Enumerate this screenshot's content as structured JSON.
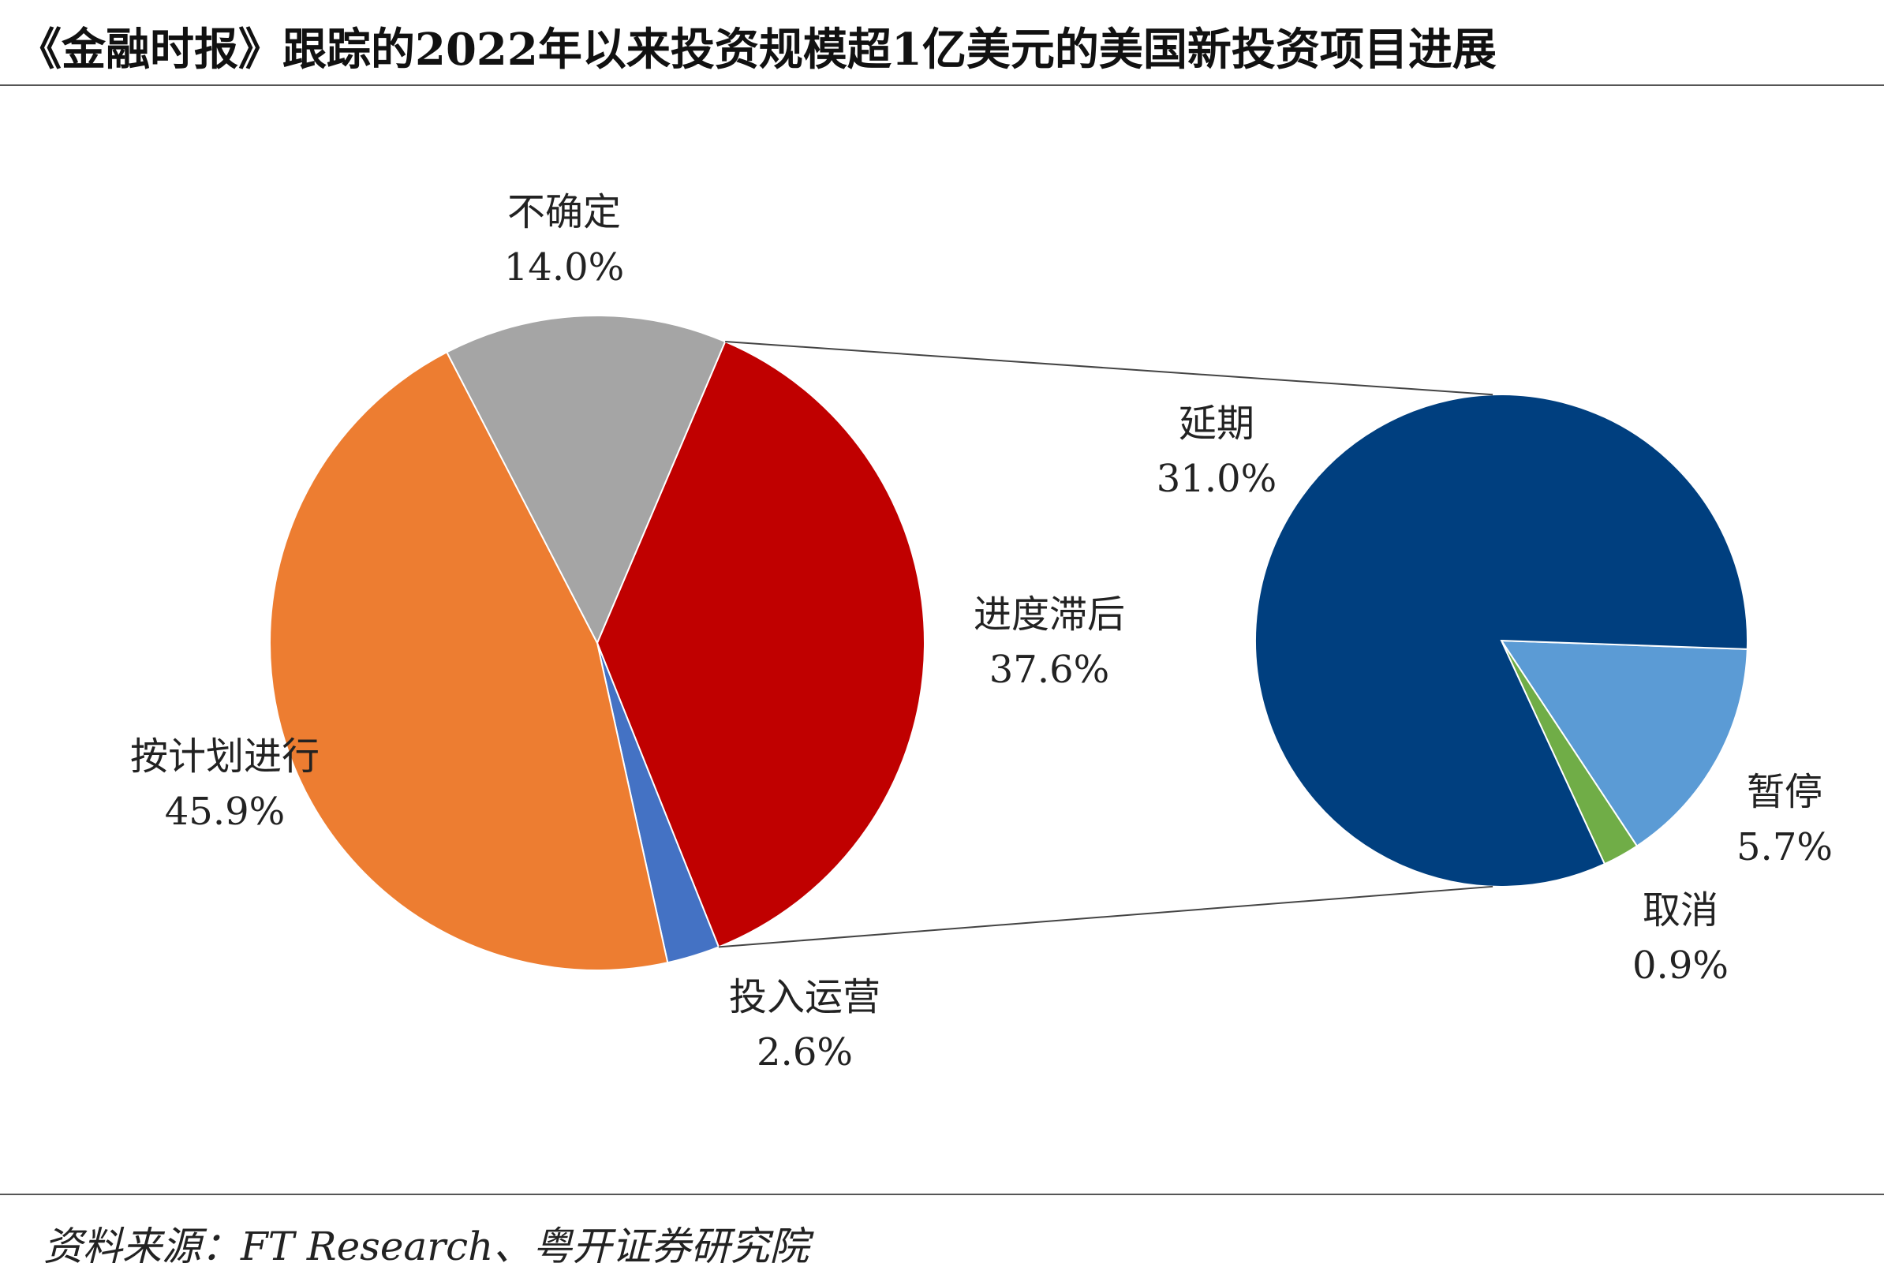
{
  "title": "《金融时报》跟踪的2022年以来投资规模超1亿美元的美国新投资项目进展",
  "source": "资料来源：FT Research、粤开证券研究院",
  "chart_data": [
    {
      "type": "pie",
      "title": "",
      "slices": [
        {
          "label": "进度滞后",
          "value": 37.6,
          "display": "37.6%",
          "color": "#c00000"
        },
        {
          "label": "投入运营",
          "value": 2.6,
          "display": "2.6%",
          "color": "#4472c4"
        },
        {
          "label": "按计划进行",
          "value": 45.9,
          "display": "45.9%",
          "color": "#ed7d31"
        },
        {
          "label": "不确定",
          "value": 14.0,
          "display": "14.0%",
          "color": "#a5a5a5"
        }
      ]
    },
    {
      "type": "pie",
      "title": "",
      "breakdown_of": "进度滞后",
      "slices": [
        {
          "label": "延期",
          "value": 31.0,
          "display": "31.0%",
          "color": "#003f7f"
        },
        {
          "label": "暂停",
          "value": 5.7,
          "display": "5.7%",
          "color": "#5b9bd5"
        },
        {
          "label": "取消",
          "value": 0.9,
          "display": "0.9%",
          "color": "#70ad47"
        }
      ]
    }
  ]
}
